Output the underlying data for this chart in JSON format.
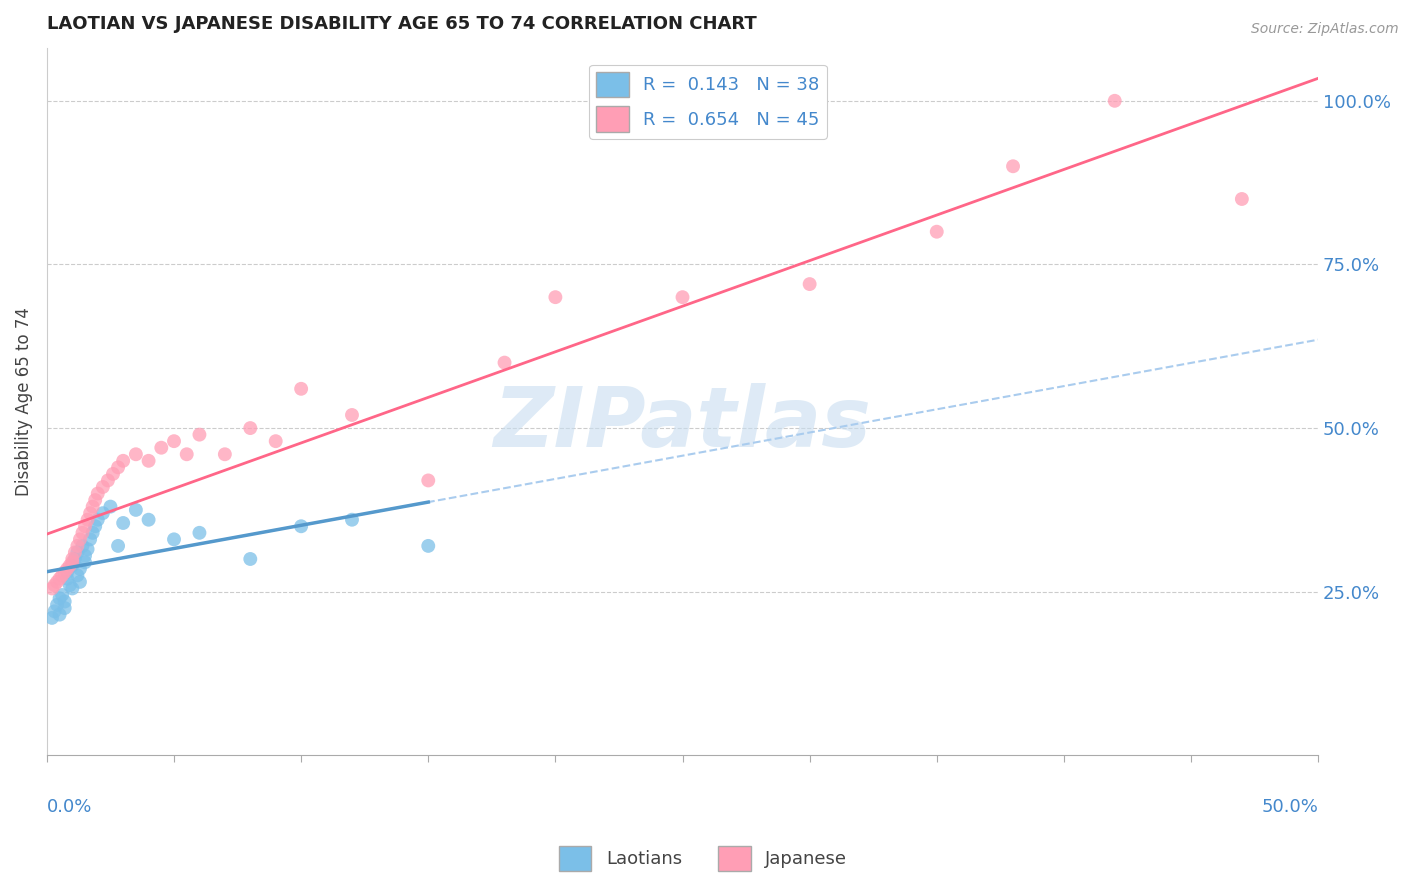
{
  "title": "LAOTIAN VS JAPANESE DISABILITY AGE 65 TO 74 CORRELATION CHART",
  "source": "Source: ZipAtlas.com",
  "ylabel": "Disability Age 65 to 74",
  "y_ticks": [
    "25.0%",
    "50.0%",
    "75.0%",
    "100.0%"
  ],
  "y_tick_vals": [
    0.25,
    0.5,
    0.75,
    1.0
  ],
  "x_lim": [
    0.0,
    0.5
  ],
  "y_lim": [
    0.0,
    1.08
  ],
  "laotian_R": 0.143,
  "laotian_N": 38,
  "japanese_R": 0.654,
  "japanese_N": 45,
  "laotian_color": "#7BBFE8",
  "japanese_color": "#FF9EB5",
  "laotian_trend_color": "#5599CC",
  "laotian_trend_dash_color": "#AACCEE",
  "japanese_trend_color": "#FF6688",
  "watermark_color": "#C8DDF0",
  "laotian_x": [
    0.002,
    0.003,
    0.004,
    0.005,
    0.005,
    0.006,
    0.007,
    0.007,
    0.008,
    0.008,
    0.009,
    0.01,
    0.01,
    0.011,
    0.012,
    0.012,
    0.013,
    0.013,
    0.014,
    0.015,
    0.015,
    0.016,
    0.017,
    0.018,
    0.019,
    0.02,
    0.022,
    0.025,
    0.028,
    0.03,
    0.035,
    0.04,
    0.05,
    0.06,
    0.08,
    0.1,
    0.12,
    0.15
  ],
  "laotian_y": [
    0.21,
    0.22,
    0.23,
    0.24,
    0.215,
    0.245,
    0.225,
    0.235,
    0.28,
    0.27,
    0.26,
    0.29,
    0.255,
    0.3,
    0.275,
    0.31,
    0.265,
    0.285,
    0.32,
    0.295,
    0.305,
    0.315,
    0.33,
    0.34,
    0.35,
    0.36,
    0.37,
    0.38,
    0.32,
    0.355,
    0.375,
    0.36,
    0.33,
    0.34,
    0.3,
    0.35,
    0.36,
    0.32
  ],
  "japanese_x": [
    0.002,
    0.003,
    0.004,
    0.005,
    0.006,
    0.007,
    0.008,
    0.009,
    0.01,
    0.01,
    0.011,
    0.012,
    0.013,
    0.014,
    0.015,
    0.016,
    0.017,
    0.018,
    0.019,
    0.02,
    0.022,
    0.024,
    0.026,
    0.028,
    0.03,
    0.035,
    0.04,
    0.045,
    0.05,
    0.055,
    0.06,
    0.07,
    0.08,
    0.09,
    0.1,
    0.12,
    0.15,
    0.18,
    0.2,
    0.25,
    0.3,
    0.35,
    0.38,
    0.42,
    0.47
  ],
  "japanese_y": [
    0.255,
    0.26,
    0.265,
    0.27,
    0.275,
    0.28,
    0.285,
    0.29,
    0.295,
    0.3,
    0.31,
    0.32,
    0.33,
    0.34,
    0.35,
    0.36,
    0.37,
    0.38,
    0.39,
    0.4,
    0.41,
    0.42,
    0.43,
    0.44,
    0.45,
    0.46,
    0.45,
    0.47,
    0.48,
    0.46,
    0.49,
    0.46,
    0.5,
    0.48,
    0.56,
    0.52,
    0.42,
    0.6,
    0.7,
    0.7,
    0.72,
    0.8,
    0.9,
    1.0,
    0.85
  ]
}
